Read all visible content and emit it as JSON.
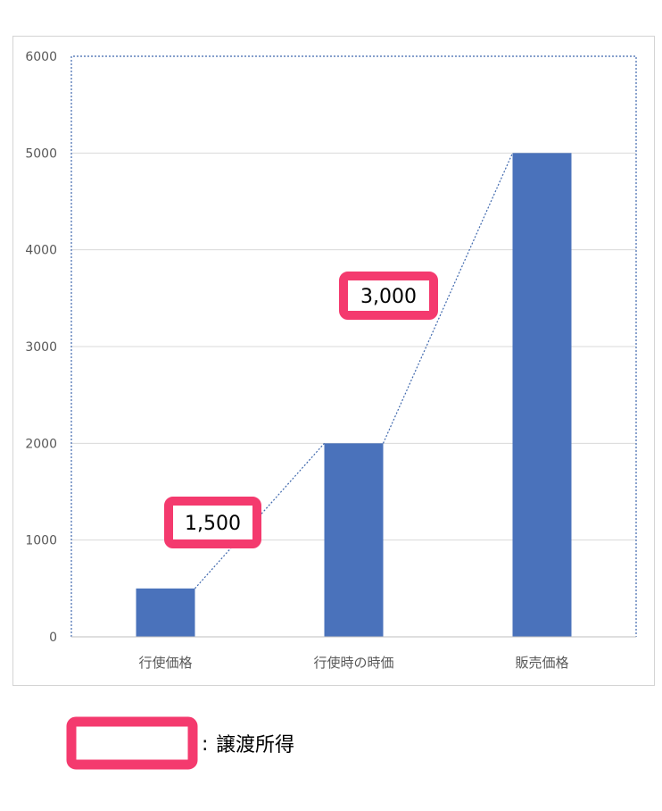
{
  "chart_data": {
    "type": "bar",
    "categories": [
      "行使価格",
      "行使時の時価",
      "販売価格"
    ],
    "values": [
      500,
      2000,
      5000
    ],
    "ylim": [
      0,
      6000
    ],
    "yticks": [
      0,
      1000,
      2000,
      3000,
      4000,
      5000,
      6000
    ],
    "grid": true,
    "bar_color": "#4a72bb",
    "connector_color": "#3f68ad",
    "callouts": [
      {
        "label": "1,500",
        "from_category": 0,
        "to_category": 1
      },
      {
        "label": "3,000",
        "from_category": 1,
        "to_category": 2
      }
    ],
    "callout_border_color": "#f43a6e",
    "legend": {
      "separator": ":",
      "label": "譲渡所得"
    }
  }
}
